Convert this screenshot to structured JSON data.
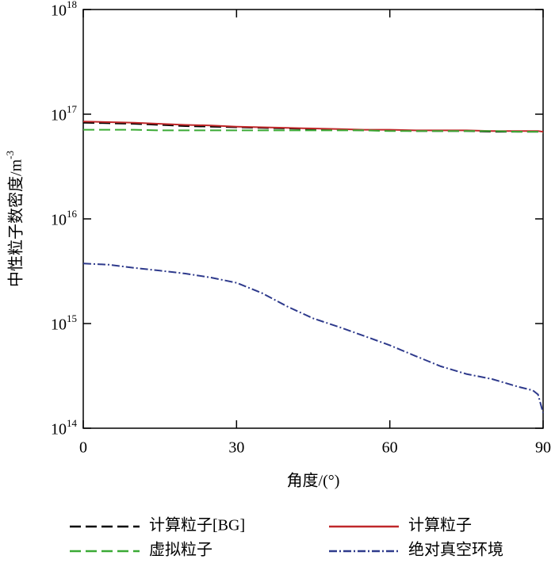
{
  "chart_data": {
    "type": "line",
    "x_label": "角度/(°)",
    "y_label": "中性粒子数密度/m^-3",
    "x": [
      0,
      5,
      10,
      15,
      20,
      25,
      30,
      35,
      40,
      45,
      50,
      55,
      60,
      65,
      70,
      75,
      80,
      85,
      88,
      89,
      90
    ],
    "series": [
      {
        "name": "计算粒子[BG]",
        "color": "#000000",
        "dash": "dashed",
        "values": [
          8.3e+16,
          8.2e+16,
          8.1e+16,
          7.9e+16,
          7.7e+16,
          7.6e+16,
          7.5e+16,
          7.4e+16,
          7.3e+16,
          7.2e+16,
          7.1e+16,
          7e+16,
          7e+16,
          6.9e+16,
          6.9e+16,
          6.9e+16,
          6.8e+16,
          6.8e+16,
          6.8e+16,
          6.8e+16,
          6.8e+16
        ]
      },
      {
        "name": "计算粒子",
        "color": "#c0282a",
        "dash": "solid",
        "values": [
          8.5e+16,
          8.4e+16,
          8.3e+16,
          8.1e+16,
          7.9e+16,
          7.8e+16,
          7.6e+16,
          7.5e+16,
          7.4e+16,
          7.3e+16,
          7.2e+16,
          7.1e+16,
          7.1e+16,
          7e+16,
          7e+16,
          7e+16,
          6.9e+16,
          6.9e+16,
          6.9e+16,
          6.9e+16,
          6.8e+16
        ]
      },
      {
        "name": "虚拟粒子",
        "color": "#3aaa35",
        "dash": "dashed",
        "values": [
          7.1e+16,
          7.1e+16,
          7.1e+16,
          7e+16,
          7e+16,
          7e+16,
          7e+16,
          7e+16,
          7e+16,
          7e+16,
          7e+16,
          7e+16,
          6.9e+16,
          6.9e+16,
          6.9e+16,
          6.9e+16,
          6.9e+16,
          6.8e+16,
          6.8e+16,
          6.8e+16,
          6.6e+16
        ]
      },
      {
        "name": "绝对真空环境",
        "color": "#2e3a8c",
        "dash": "dashdot",
        "values": [
          3750000000000000.0,
          3650000000000000.0,
          3400000000000000.0,
          3200000000000000.0,
          3000000000000000.0,
          2750000000000000.0,
          2450000000000000.0,
          1950000000000000.0,
          1450000000000000.0,
          1120000000000000.0,
          930000000000000.0,
          760000000000000.0,
          620000000000000.0,
          490000000000000.0,
          390000000000000.0,
          330000000000000.0,
          295000000000000.0,
          250000000000000.0,
          230000000000000.0,
          210000000000000.0,
          140000000000000.0
        ]
      }
    ],
    "xlim": [
      0,
      90
    ],
    "xticks": [
      0,
      30,
      60,
      90
    ],
    "ylim": [
      100000000000000.0,
      1e+18
    ],
    "log_y": true,
    "yticks": [
      {
        "value": 100000000000000.0,
        "label": "10^14"
      },
      {
        "value": 1000000000000000.0,
        "label": "10^15"
      },
      {
        "value": 1e+16,
        "label": "10^16"
      },
      {
        "value": 1e+17,
        "label": "10^17"
      },
      {
        "value": 1e+18,
        "label": "10^18"
      }
    ],
    "legend": "bottom"
  }
}
